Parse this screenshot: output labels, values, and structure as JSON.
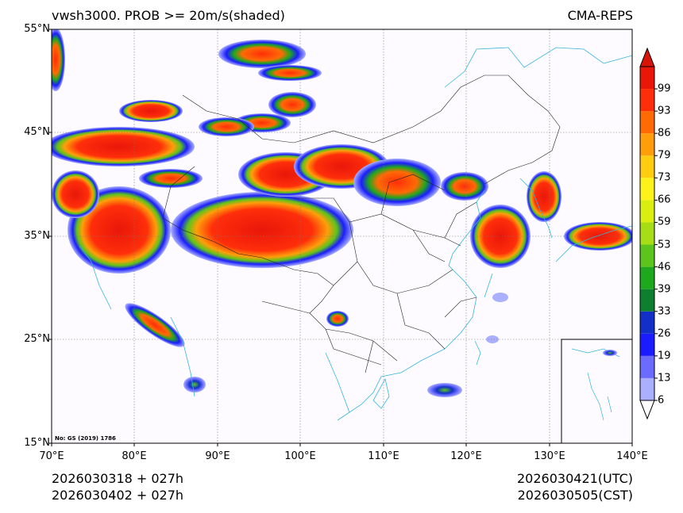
{
  "title": {
    "left": "vwsh3000. PROB >= 20m/s(shaded)",
    "right": "CMA-REPS"
  },
  "axes": {
    "lat_labels": [
      "55°N",
      "45°N",
      "35°N",
      "25°N",
      "15°N"
    ],
    "lon_labels": [
      "70°E",
      "80°E",
      "90°E",
      "100°E",
      "110°E",
      "120°E",
      "130°E",
      "140°E"
    ]
  },
  "colorbar": {
    "levels": [
      "6",
      "13",
      "19",
      "26",
      "33",
      "39",
      "46",
      "53",
      "59",
      "66",
      "73",
      "79",
      "86",
      "93",
      "99"
    ],
    "colors": [
      "#aab0ff",
      "#6b6cff",
      "#1a1cff",
      "#1230c8",
      "#0d7f2e",
      "#1ea81e",
      "#5cc41a",
      "#a6dd14",
      "#d9ef10",
      "#fff21a",
      "#ffcc10",
      "#ff9e0a",
      "#ff6a05",
      "#ff2e0a",
      "#e8170a"
    ],
    "low_color": "#ffffff",
    "high_color": "#d81408"
  },
  "footer": {
    "left_line1": "2026030318  +  027h",
    "left_line2": "2026030402  +  027h",
    "right_line1": "2026030421(UTC)",
    "right_line2": "2026030505(CST)"
  },
  "approval_no": "No: GS (2019) 1786"
}
